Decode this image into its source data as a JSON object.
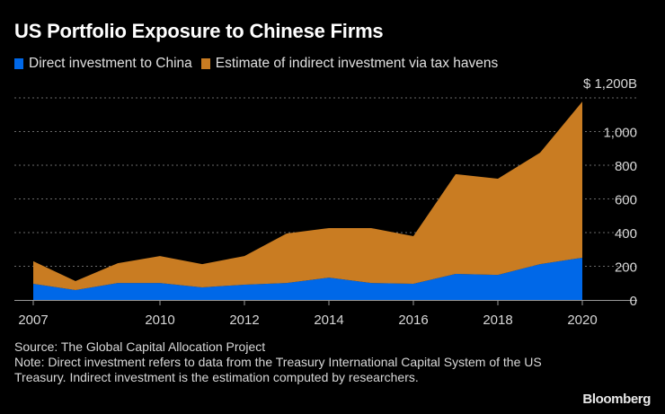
{
  "chart_data": {
    "type": "area",
    "stacked": true,
    "title": "US Portfolio Exposure to Chinese Firms",
    "x": [
      2007,
      2008,
      2009,
      2010,
      2011,
      2012,
      2013,
      2014,
      2015,
      2016,
      2017,
      2018,
      2019,
      2020
    ],
    "series": [
      {
        "name": "Direct investment to China",
        "color": "#0068E8",
        "values": [
          96,
          59,
          101,
          101,
          75,
          91,
          101,
          133,
          101,
          96,
          155,
          149,
          213,
          251
        ]
      },
      {
        "name": "Estimate of indirect investment via tax havens",
        "color": "#C97C22",
        "values": [
          134,
          53,
          117,
          160,
          138,
          170,
          294,
          294,
          326,
          283,
          592,
          571,
          662,
          927
        ]
      }
    ],
    "totals": [
      230,
      112,
      218,
      261,
      213,
      261,
      395,
      427,
      427,
      379,
      747,
      720,
      875,
      1178
    ],
    "xticks": [
      2007,
      2010,
      2012,
      2014,
      2016,
      2018,
      2020
    ],
    "yticks": [
      0,
      200,
      400,
      600,
      800,
      1000,
      1200
    ],
    "ytick_labels": [
      "0",
      "200",
      "400",
      "600",
      "800",
      "1,000",
      "$ 1,200B"
    ],
    "ylim": [
      0,
      1200
    ],
    "xlim": [
      2007,
      2020
    ],
    "xlabel": "",
    "ylabel": "",
    "y_axis_side": "right",
    "grid": "horizontal dotted",
    "legend": "top-left"
  },
  "title": "US Portfolio Exposure to Chinese Firms",
  "legend": [
    {
      "label": "Direct investment to China",
      "color": "#0068E8"
    },
    {
      "label": "Estimate of indirect investment via tax havens",
      "color": "#C97C22"
    }
  ],
  "footer": {
    "source": "Source: The Global Capital Allocation Project",
    "note": "Note: Direct investment refers to data from the Treasury International Capital System of the US Treasury. Indirect investment is the estimation computed by researchers."
  },
  "brand": "Bloomberg"
}
